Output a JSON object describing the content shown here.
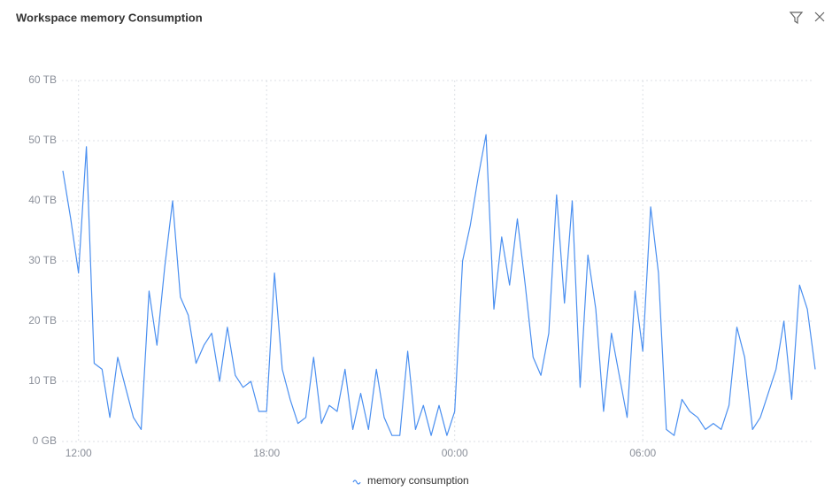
{
  "chart_data": {
    "type": "line",
    "title": "Workspace memory Consumption",
    "categories": [
      null,
      null,
      "12:00",
      null,
      null,
      null,
      null,
      null,
      null,
      null,
      null,
      null,
      null,
      null,
      null,
      null,
      null,
      null,
      null,
      null,
      null,
      null,
      null,
      null,
      null,
      null,
      "18:00",
      null,
      null,
      null,
      null,
      null,
      null,
      null,
      null,
      null,
      null,
      null,
      null,
      null,
      null,
      null,
      null,
      null,
      null,
      null,
      null,
      null,
      null,
      null,
      "00:00",
      null,
      null,
      null,
      null,
      null,
      null,
      null,
      null,
      null,
      null,
      null,
      null,
      null,
      null,
      null,
      null,
      null,
      null,
      null,
      null,
      null,
      null,
      null,
      "06:00",
      null,
      null,
      null,
      null,
      null,
      null,
      null,
      null,
      null,
      null,
      null,
      null,
      null,
      null,
      null,
      null,
      null,
      null,
      null,
      null,
      null,
      null
    ],
    "series": [
      {
        "name": "memory consumption",
        "color": "#4a8ff0",
        "values": [
          45,
          37,
          28,
          49,
          13,
          12,
          4,
          14,
          9,
          4,
          2,
          25,
          16,
          29,
          40,
          24,
          21,
          13,
          16,
          18,
          10,
          19,
          11,
          9,
          10,
          5,
          5,
          28,
          12,
          7,
          3,
          4,
          14,
          3,
          6,
          5,
          12,
          2,
          8,
          2,
          12,
          4,
          1,
          1,
          15,
          2,
          6,
          1,
          6,
          1,
          5,
          30,
          36,
          44,
          51,
          22,
          34,
          26,
          37,
          26,
          14,
          11,
          18,
          41,
          23,
          40,
          9,
          31,
          22,
          5,
          18,
          11,
          4,
          25,
          15,
          39,
          28,
          2,
          1,
          7,
          5,
          4,
          2,
          3,
          2,
          6,
          19,
          14,
          2,
          4,
          8,
          12,
          20,
          7,
          26,
          22,
          12
        ]
      }
    ],
    "ylim": [
      0,
      60
    ],
    "yticks": [
      {
        "value": 0,
        "label": "0 GB"
      },
      {
        "value": 10,
        "label": "10 TB"
      },
      {
        "value": 20,
        "label": "20 TB"
      },
      {
        "value": 30,
        "label": "30 TB"
      },
      {
        "value": 40,
        "label": "40 TB"
      },
      {
        "value": 50,
        "label": "50 TB"
      },
      {
        "value": 60,
        "label": "60 TB"
      }
    ],
    "grid": true
  }
}
